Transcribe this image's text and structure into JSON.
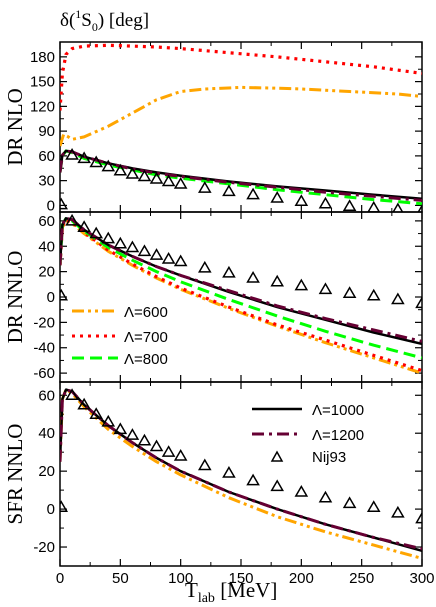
{
  "figure": {
    "top_label": "δ(¹S₀) [deg]",
    "top_label_main": "δ(",
    "top_label_sup": "1",
    "top_label_sub_main": "S",
    "top_label_sub": "0",
    "top_label_end": ") [deg]",
    "x_axis_label_main": "T",
    "x_axis_label_sub": "lab",
    "x_axis_label_unit": " [MeV]"
  },
  "legend": {
    "l600": "Λ=600",
    "l700": "Λ=700",
    "l800": "Λ=800",
    "l1000": "Λ=1000",
    "l1200": "Λ=1200",
    "nij": "Nij93"
  },
  "colors": {
    "l600": "#ffa500",
    "l700": "#ff0000",
    "l800": "#00ff00",
    "l1000": "#000000",
    "l1200": "#660033",
    "nij": "#000000"
  },
  "chart_data": [
    {
      "type": "line",
      "panel": "DR NLO",
      "ylabel": "DR NLO",
      "xlim": [
        0,
        300
      ],
      "ylim": [
        -8,
        198
      ],
      "xticks": [
        0,
        50,
        100,
        150,
        200,
        250,
        300
      ],
      "yticks": [
        0,
        30,
        60,
        90,
        120,
        150,
        180
      ],
      "series": [
        {
          "name": "Λ=600",
          "style": "dash-dot-dot",
          "x": [
            0,
            3,
            6,
            10,
            20,
            40,
            60,
            80,
            100,
            120,
            150,
            180,
            200,
            240,
            280,
            300
          ],
          "y": [
            72,
            86,
            84,
            80,
            83,
            96,
            112,
            128,
            138,
            141,
            143,
            142,
            141,
            138,
            135,
            132
          ]
        },
        {
          "name": "Λ=700",
          "style": "dotted",
          "x": [
            0,
            2,
            5,
            10,
            20,
            40,
            60,
            80,
            100,
            140,
            180,
            220,
            260,
            300
          ],
          "y": [
            115,
            160,
            183,
            190,
            193,
            194,
            193,
            192,
            190,
            185,
            180,
            174,
            168,
            160
          ]
        },
        {
          "name": "Λ=800",
          "style": "dashed",
          "x": [
            0,
            2,
            5,
            10,
            20,
            40,
            60,
            80,
            100,
            140,
            180,
            220,
            260,
            300
          ],
          "y": [
            40,
            60,
            66,
            64,
            57,
            49,
            43,
            37,
            33,
            26,
            19,
            13,
            7,
            2
          ]
        },
        {
          "name": "Λ=1000",
          "style": "solid",
          "x": [
            0,
            2,
            5,
            10,
            20,
            40,
            60,
            80,
            100,
            140,
            180,
            220,
            260,
            300
          ],
          "y": [
            40,
            61,
            66,
            65,
            59,
            51,
            45,
            40,
            36,
            29,
            23,
            18,
            13,
            8
          ]
        },
        {
          "name": "Λ=1200",
          "style": "dash-dot",
          "x": [
            0,
            2,
            5,
            10,
            20,
            40,
            60,
            80,
            100,
            140,
            180,
            220,
            260,
            300
          ],
          "y": [
            40,
            61,
            66,
            65,
            59,
            51,
            44,
            39,
            35,
            28,
            22,
            16,
            11,
            6
          ]
        },
        {
          "name": "Nij93",
          "style": "triangle",
          "x": [
            1,
            10,
            20,
            30,
            40,
            50,
            60,
            70,
            80,
            90,
            100,
            120,
            140,
            160,
            180,
            200,
            220,
            240,
            260,
            280,
            300
          ],
          "y": [
            1,
            61,
            57,
            52,
            47,
            42,
            38,
            35,
            32,
            29,
            26,
            21,
            17,
            13,
            9,
            5,
            2,
            -1,
            -3,
            -5,
            -7
          ]
        }
      ]
    },
    {
      "type": "line",
      "panel": "DR NNLO",
      "ylabel": "DR NNLO",
      "xlim": [
        0,
        300
      ],
      "ylim": [
        -67,
        67
      ],
      "xticks": [
        0,
        50,
        100,
        150,
        200,
        250,
        300
      ],
      "yticks": [
        -60,
        -40,
        -20,
        0,
        20,
        40,
        60
      ],
      "series": [
        {
          "name": "Λ=600",
          "style": "dash-dot-dot",
          "x": [
            0,
            2,
            5,
            10,
            20,
            40,
            60,
            80,
            100,
            140,
            180,
            220,
            260,
            300
          ],
          "y": [
            25,
            55,
            60,
            58,
            50,
            36,
            25,
            15,
            6,
            -9,
            -23,
            -36,
            -48,
            -60
          ]
        },
        {
          "name": "Λ=700",
          "style": "dotted",
          "x": [
            0,
            2,
            5,
            10,
            20,
            40,
            60,
            80,
            100,
            140,
            180,
            220,
            260,
            300
          ],
          "y": [
            25,
            56,
            61,
            59,
            51,
            37,
            26,
            16,
            7,
            -8,
            -22,
            -34,
            -46,
            -58
          ]
        },
        {
          "name": "Λ=800",
          "style": "dashed",
          "x": [
            0,
            2,
            5,
            10,
            20,
            40,
            60,
            80,
            100,
            140,
            180,
            220,
            260,
            300
          ],
          "y": [
            25,
            57,
            62,
            60,
            52,
            39,
            29,
            20,
            12,
            -2,
            -15,
            -27,
            -38,
            -48
          ]
        },
        {
          "name": "Λ=1000",
          "style": "solid",
          "x": [
            0,
            2,
            5,
            10,
            20,
            40,
            60,
            80,
            100,
            140,
            180,
            220,
            260,
            300
          ],
          "y": [
            25,
            57,
            62,
            61,
            53,
            41,
            32,
            24,
            17,
            4,
            -8,
            -18,
            -28,
            -37
          ]
        },
        {
          "name": "Λ=1200",
          "style": "dash-dot",
          "x": [
            0,
            2,
            5,
            10,
            20,
            40,
            60,
            80,
            100,
            140,
            180,
            220,
            260,
            300
          ],
          "y": [
            25,
            57,
            62,
            61,
            53,
            41,
            32,
            24,
            17,
            5,
            -7,
            -17,
            -26,
            -35
          ]
        },
        {
          "name": "Nij93",
          "style": "triangle",
          "x": [
            1,
            10,
            20,
            30,
            40,
            50,
            60,
            70,
            80,
            90,
            100,
            120,
            140,
            160,
            180,
            200,
            220,
            240,
            260,
            280,
            300
          ],
          "y": [
            1,
            60,
            55,
            50,
            46,
            42,
            39,
            36,
            33,
            30,
            28,
            23,
            19,
            15,
            12,
            9,
            6,
            3,
            1,
            -2,
            -5
          ]
        }
      ]
    },
    {
      "type": "line",
      "panel": "SFR NNLO",
      "ylabel": "SFR NNLO",
      "xlim": [
        0,
        300
      ],
      "ylim": [
        -30,
        67
      ],
      "xticks": [
        0,
        50,
        100,
        150,
        200,
        250,
        300
      ],
      "yticks": [
        -20,
        0,
        20,
        40,
        60
      ],
      "series": [
        {
          "name": "Λ=600",
          "style": "dash-dot-dot",
          "x": [
            0,
            2,
            5,
            10,
            20,
            40,
            60,
            80,
            100,
            140,
            180,
            220,
            260,
            300
          ],
          "y": [
            25,
            58,
            63,
            61,
            54,
            42,
            33,
            25,
            18,
            6,
            -4,
            -12,
            -19,
            -26
          ]
        },
        {
          "name": "Λ=1000",
          "style": "solid",
          "x": [
            0,
            2,
            5,
            10,
            20,
            40,
            60,
            80,
            100,
            140,
            180,
            220,
            260,
            300
          ],
          "y": [
            25,
            58,
            63,
            62,
            55,
            44,
            35,
            27,
            20,
            9,
            0,
            -8,
            -15,
            -22
          ]
        },
        {
          "name": "Λ=1200",
          "style": "dash-dot",
          "x": [
            0,
            2,
            5,
            10,
            20,
            40,
            60,
            80,
            100,
            140,
            180,
            220,
            260,
            300
          ],
          "y": [
            25,
            58,
            63,
            62,
            55,
            44,
            35,
            27,
            20,
            9,
            0,
            -8,
            -15,
            -21
          ]
        },
        {
          "name": "Nij93",
          "style": "triangle",
          "x": [
            1,
            10,
            20,
            30,
            40,
            50,
            60,
            70,
            80,
            90,
            100,
            120,
            140,
            160,
            180,
            200,
            220,
            240,
            260,
            280,
            300
          ],
          "y": [
            1,
            60,
            55,
            50,
            46,
            42,
            39,
            36,
            33,
            30,
            28,
            23,
            19,
            15,
            12,
            9,
            6,
            3,
            1,
            -2,
            -5
          ]
        }
      ]
    }
  ]
}
